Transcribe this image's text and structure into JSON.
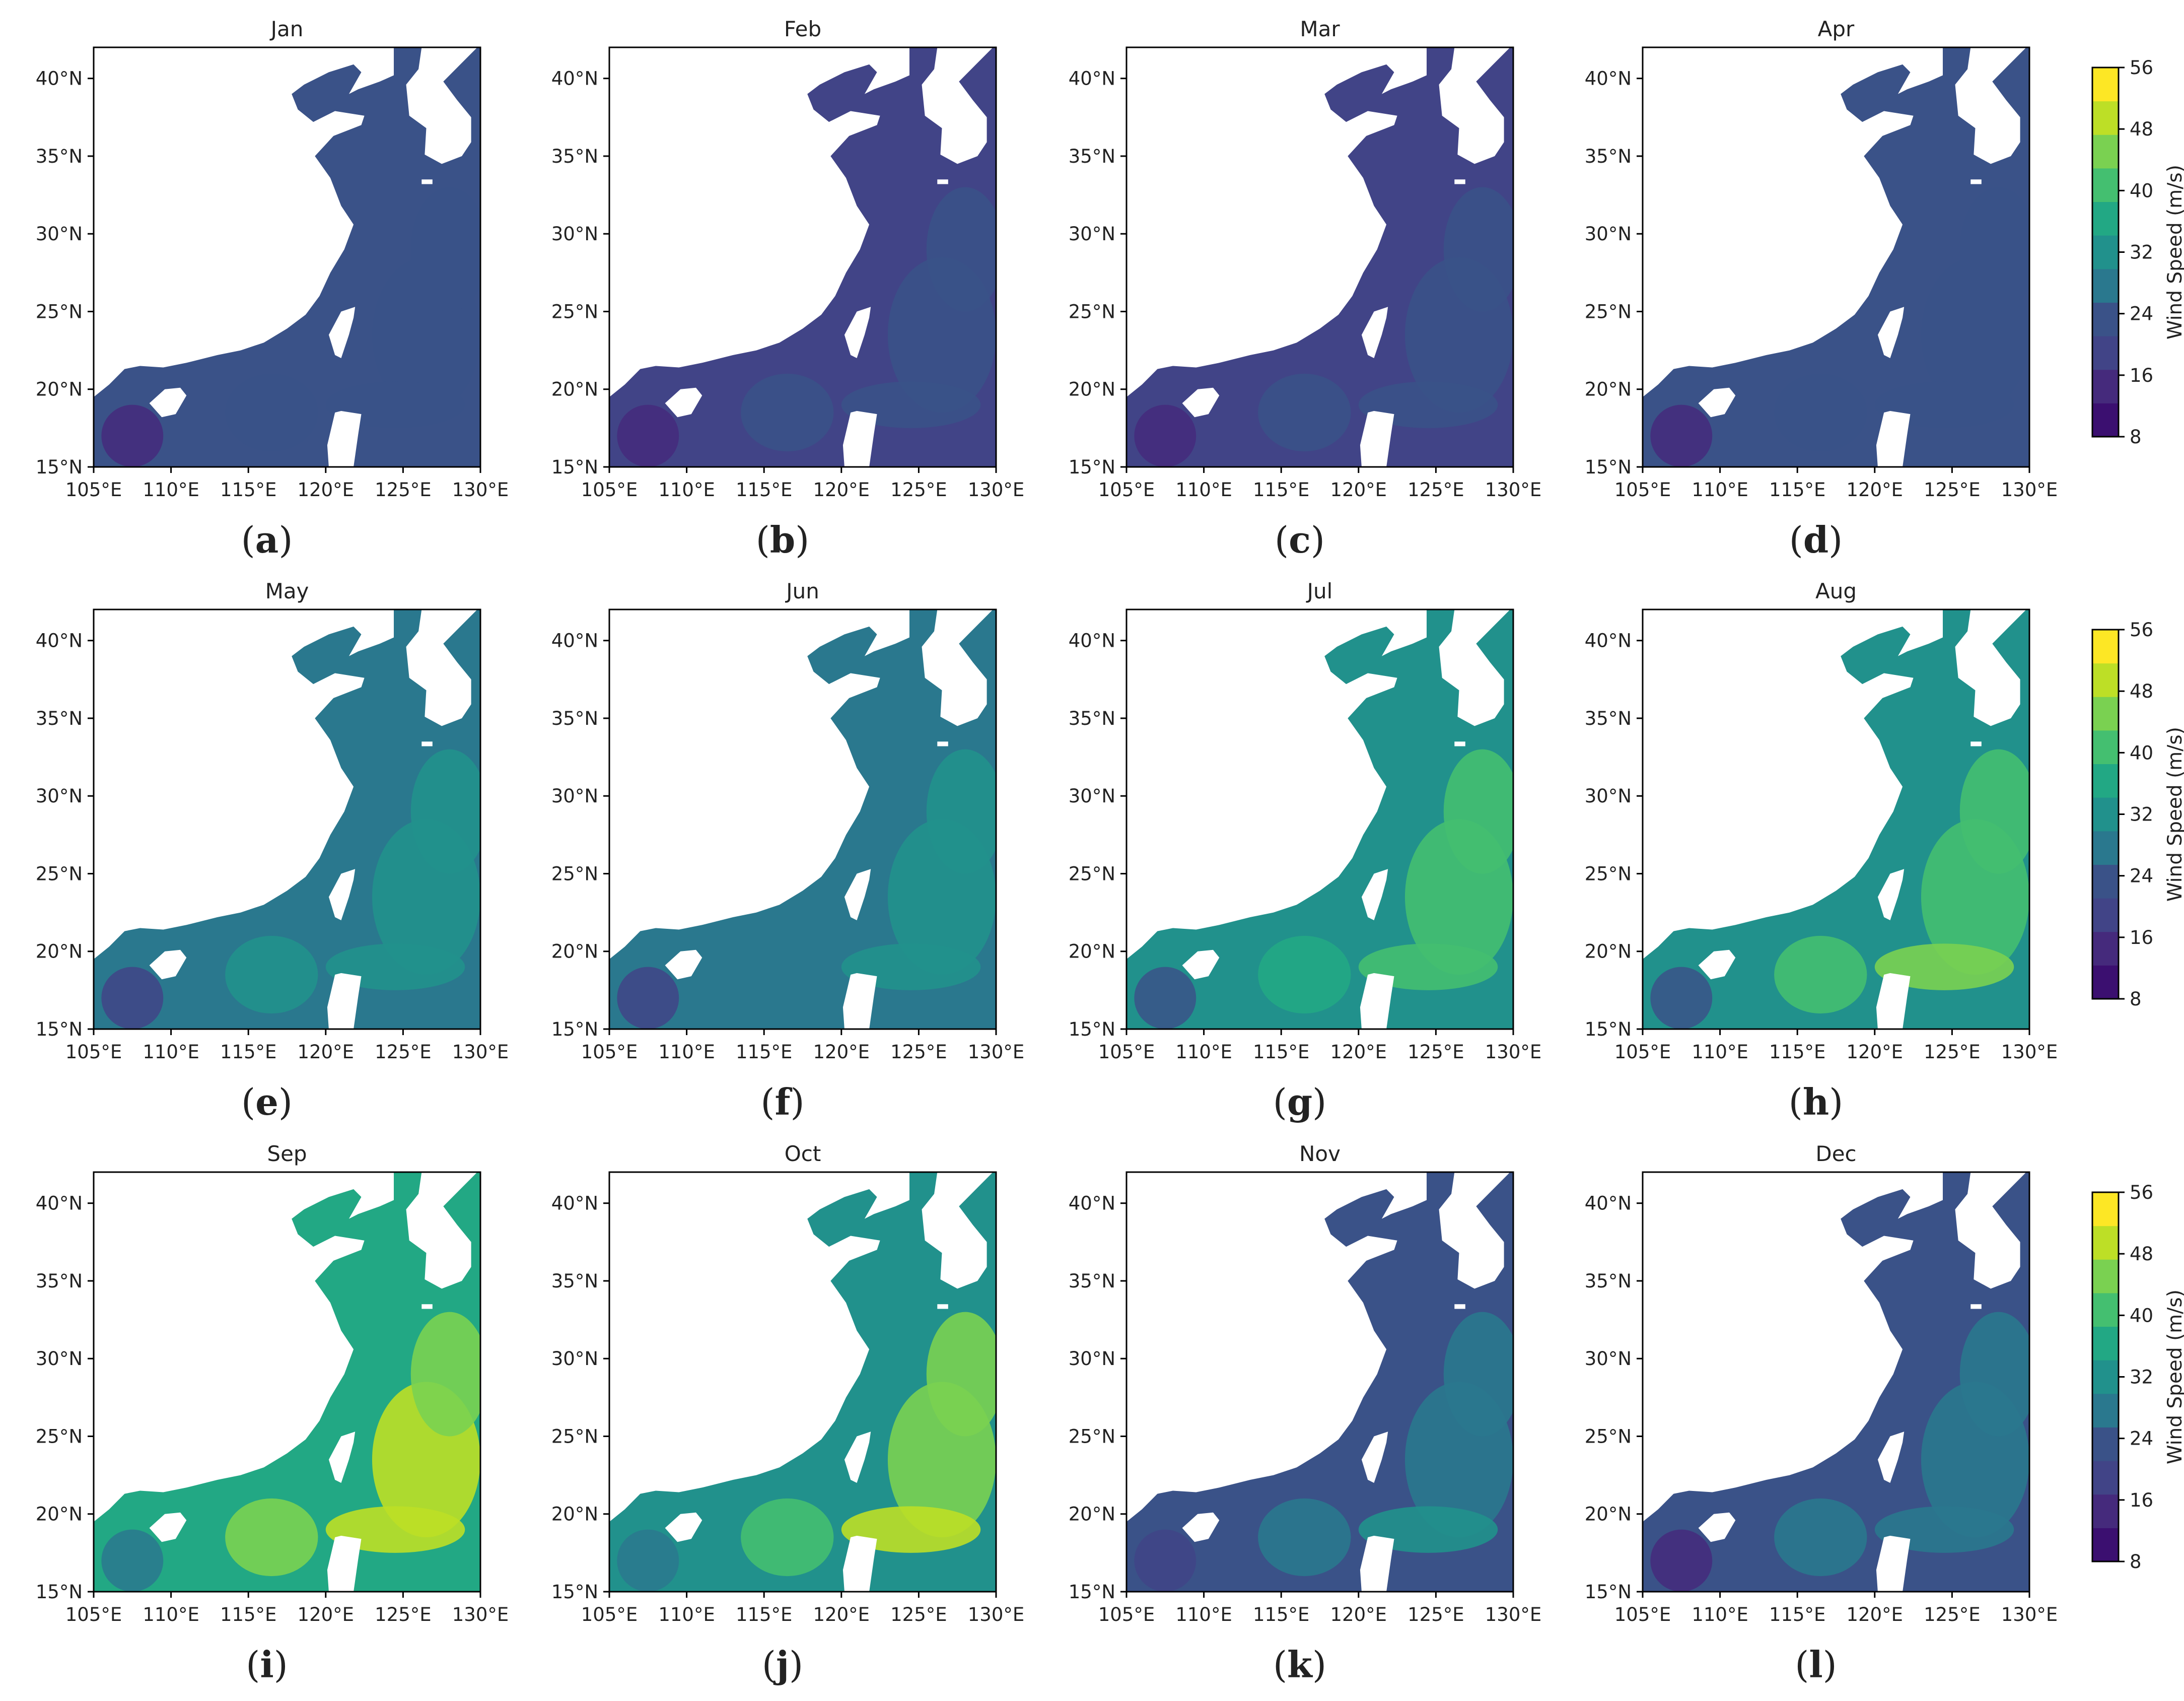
{
  "figure": {
    "colorbar": {
      "label": "Wind Speed (m/s)",
      "ticks": [
        8,
        16,
        24,
        32,
        40,
        48,
        56
      ],
      "colors": [
        "#3b0f70",
        "#452a7c",
        "#414487",
        "#3a5288",
        "#2a788e",
        "#21918c",
        "#22a884",
        "#44bf70",
        "#7ad151",
        "#bddf26",
        "#fde725"
      ]
    }
  },
  "chart_data": [
    {
      "type": "heatmap",
      "title": "Jan",
      "panel_label": "a",
      "mean_level": 22,
      "xlabel_ticks": [
        "105°E",
        "110°E",
        "115°E",
        "120°E",
        "125°E",
        "130°E"
      ],
      "ylabel_ticks": [
        "15°N",
        "20°N",
        "25°N",
        "30°N",
        "35°N",
        "40°N"
      ],
      "xlim": [
        105,
        130
      ],
      "ylim": [
        15,
        42
      ]
    },
    {
      "type": "heatmap",
      "title": "Feb",
      "panel_label": "b",
      "mean_level": 21,
      "xlabel_ticks": [
        "105°E",
        "110°E",
        "115°E",
        "120°E",
        "125°E",
        "130°E"
      ],
      "ylabel_ticks": [
        "15°N",
        "20°N",
        "25°N",
        "30°N",
        "35°N",
        "40°N"
      ],
      "xlim": [
        105,
        130
      ],
      "ylim": [
        15,
        42
      ]
    },
    {
      "type": "heatmap",
      "title": "Mar",
      "panel_label": "c",
      "mean_level": 21,
      "xlabel_ticks": [
        "105°E",
        "110°E",
        "115°E",
        "120°E",
        "125°E",
        "130°E"
      ],
      "ylabel_ticks": [
        "15°N",
        "20°N",
        "25°N",
        "30°N",
        "35°N",
        "40°N"
      ],
      "xlim": [
        105,
        130
      ],
      "ylim": [
        15,
        42
      ]
    },
    {
      "type": "heatmap",
      "title": "Apr",
      "panel_label": "d",
      "mean_level": 22,
      "xlabel_ticks": [
        "105°E",
        "110°E",
        "115°E",
        "120°E",
        "125°E",
        "130°E"
      ],
      "ylabel_ticks": [
        "15°N",
        "20°N",
        "25°N",
        "30°N",
        "35°N",
        "40°N"
      ],
      "xlim": [
        105,
        130
      ],
      "ylim": [
        15,
        42
      ]
    },
    {
      "type": "heatmap",
      "title": "May",
      "panel_label": "e",
      "mean_level": 27,
      "xlabel_ticks": [
        "105°E",
        "110°E",
        "115°E",
        "120°E",
        "125°E",
        "130°E"
      ],
      "ylabel_ticks": [
        "15°N",
        "20°N",
        "25°N",
        "30°N",
        "35°N",
        "40°N"
      ],
      "xlim": [
        105,
        130
      ],
      "ylim": [
        15,
        42
      ]
    },
    {
      "type": "heatmap",
      "title": "Jun",
      "panel_label": "f",
      "mean_level": 26,
      "xlabel_ticks": [
        "105°E",
        "110°E",
        "115°E",
        "120°E",
        "125°E",
        "130°E"
      ],
      "ylabel_ticks": [
        "15°N",
        "20°N",
        "25°N",
        "30°N",
        "35°N",
        "40°N"
      ],
      "xlim": [
        105,
        130
      ],
      "ylim": [
        15,
        42
      ]
    },
    {
      "type": "heatmap",
      "title": "Jul",
      "panel_label": "g",
      "mean_level": 31,
      "xlabel_ticks": [
        "105°E",
        "110°E",
        "115°E",
        "120°E",
        "125°E",
        "130°E"
      ],
      "ylabel_ticks": [
        "15°N",
        "20°N",
        "25°N",
        "30°N",
        "35°N",
        "40°N"
      ],
      "xlim": [
        105,
        130
      ],
      "ylim": [
        15,
        42
      ]
    },
    {
      "type": "heatmap",
      "title": "Aug",
      "panel_label": "h",
      "mean_level": 32,
      "xlabel_ticks": [
        "105°E",
        "110°E",
        "115°E",
        "120°E",
        "125°E",
        "130°E"
      ],
      "ylabel_ticks": [
        "15°N",
        "20°N",
        "25°N",
        "30°N",
        "35°N",
        "40°N"
      ],
      "xlim": [
        105,
        130
      ],
      "ylim": [
        15,
        42
      ]
    },
    {
      "type": "heatmap",
      "title": "Sep",
      "panel_label": "i",
      "mean_level": 35,
      "xlabel_ticks": [
        "105°E",
        "110°E",
        "115°E",
        "120°E",
        "125°E",
        "130°E"
      ],
      "ylabel_ticks": [
        "15°N",
        "20°N",
        "25°N",
        "30°N",
        "35°N",
        "40°N"
      ],
      "xlim": [
        105,
        130
      ],
      "ylim": [
        15,
        42
      ]
    },
    {
      "type": "heatmap",
      "title": "Oct",
      "panel_label": "j",
      "mean_level": 34,
      "xlabel_ticks": [
        "105°E",
        "110°E",
        "115°E",
        "120°E",
        "125°E",
        "130°E"
      ],
      "ylabel_ticks": [
        "15°N",
        "20°N",
        "25°N",
        "30°N",
        "35°N",
        "40°N"
      ],
      "xlim": [
        105,
        130
      ],
      "ylim": [
        15,
        42
      ]
    },
    {
      "type": "heatmap",
      "title": "Nov",
      "panel_label": "k",
      "mean_level": 25,
      "xlabel_ticks": [
        "105°E",
        "110°E",
        "115°E",
        "120°E",
        "125°E",
        "130°E"
      ],
      "ylabel_ticks": [
        "15°N",
        "20°N",
        "25°N",
        "30°N",
        "35°N",
        "40°N"
      ],
      "xlim": [
        105,
        130
      ],
      "ylim": [
        15,
        42
      ]
    },
    {
      "type": "heatmap",
      "title": "Dec",
      "panel_label": "l",
      "mean_level": 24,
      "xlabel_ticks": [
        "105°E",
        "110°E",
        "115°E",
        "120°E",
        "125°E",
        "130°E"
      ],
      "ylabel_ticks": [
        "15°N",
        "20°N",
        "25°N",
        "30°N",
        "35°N",
        "40°N"
      ],
      "xlim": [
        105,
        130
      ],
      "ylim": [
        15,
        42
      ]
    }
  ]
}
